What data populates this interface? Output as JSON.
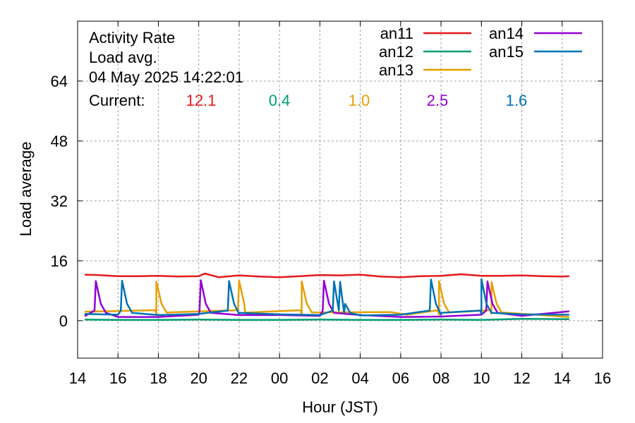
{
  "chart_data": {
    "type": "line",
    "title": "Activity Rate",
    "subtitle": "Load avg.",
    "timestamp": "04 May 2025 14:22:01",
    "current_label": "Current:",
    "xlabel": "Hour (JST)",
    "ylabel": "Load average",
    "xlim": [
      14,
      40
    ],
    "ylim": [
      -10,
      80
    ],
    "x_ticks": [
      14,
      16,
      18,
      20,
      22,
      24,
      26,
      28,
      30,
      32,
      34,
      36,
      38,
      40
    ],
    "x_tick_labels": [
      "14",
      "16",
      "18",
      "20",
      "22",
      "00",
      "02",
      "04",
      "06",
      "08",
      "10",
      "12",
      "14",
      "16"
    ],
    "y_ticks": [
      0,
      16,
      32,
      48,
      64
    ],
    "y_tick_labels": [
      "0",
      "16",
      "32",
      "48",
      "64"
    ],
    "grid": true,
    "legend_position": "top-right",
    "series": [
      {
        "name": "an11",
        "color": "#e41a1c",
        "current": "12.1",
        "base": 12.0,
        "x": [
          14.35,
          15,
          16,
          17,
          18,
          19,
          20,
          20.3,
          21,
          22,
          23,
          24,
          25,
          26,
          27,
          28,
          29,
          30,
          31,
          32,
          33,
          34,
          35,
          36,
          37,
          38,
          38.35
        ],
        "values": [
          12.3,
          12.2,
          11.9,
          11.9,
          12.0,
          11.8,
          11.9,
          12.6,
          11.6,
          12.1,
          11.8,
          11.6,
          11.9,
          12.2,
          12.1,
          12.3,
          11.8,
          11.6,
          11.9,
          12.0,
          12.4,
          12.0,
          12.0,
          12.1,
          11.9,
          11.8,
          11.9
        ]
      },
      {
        "name": "an12",
        "color": "#009e73",
        "current": "0.4",
        "base": 0.4,
        "x": [
          14.35,
          16,
          18,
          20,
          22,
          24,
          26,
          28,
          30,
          32,
          34,
          36,
          38.35
        ],
        "values": [
          0.3,
          0.2,
          0.2,
          0.3,
          0.2,
          0.2,
          0.3,
          0.2,
          0.2,
          0.3,
          0.2,
          0.5,
          0.4
        ]
      },
      {
        "name": "an13",
        "color": "#e69f00",
        "current": "1.0",
        "base": 1.6,
        "x": [
          14.35,
          17.9,
          22.3,
          25.1,
          29.5,
          30.3,
          31.9,
          34.5,
          38.35
        ],
        "values": [
          2.4,
          1.8,
          2.2,
          1.5,
          2.3,
          1.6,
          1.6,
          1.9,
          1.0
        ],
        "spikes": [
          {
            "x": 17.9,
            "value": 10.4
          },
          {
            "x": 22.0,
            "value": 10.7
          },
          {
            "x": 25.1,
            "value": 10.5
          },
          {
            "x": 31.9,
            "value": 10.6
          },
          {
            "x": 34.5,
            "value": 10.3
          }
        ]
      },
      {
        "name": "an14",
        "color": "#9400d3",
        "current": "2.5",
        "base": 1.5,
        "x": [
          14.35,
          16,
          18,
          20,
          22,
          24,
          26,
          28,
          30,
          32,
          34,
          36,
          38.35
        ],
        "values": [
          1.2,
          1.0,
          1.0,
          1.6,
          1.5,
          1.5,
          1.3,
          1.5,
          1.0,
          1.1,
          1.6,
          1.3,
          2.5
        ],
        "spikes": [
          {
            "x": 14.9,
            "value": 10.6
          },
          {
            "x": 20.1,
            "value": 10.8
          },
          {
            "x": 26.2,
            "value": 10.7
          },
          {
            "x": 34.3,
            "value": 10.5
          }
        ]
      },
      {
        "name": "an15",
        "color": "#0072b2",
        "current": "1.6",
        "base": 1.5,
        "x": [
          14.35,
          16,
          18,
          20,
          22,
          24,
          26,
          28,
          30,
          32,
          34,
          36,
          38.35
        ],
        "values": [
          1.8,
          1.6,
          1.5,
          1.8,
          1.8,
          1.7,
          1.5,
          1.4,
          1.6,
          1.6,
          1.8,
          1.7,
          1.6
        ],
        "spikes": [
          {
            "x": 16.2,
            "value": 10.7
          },
          {
            "x": 21.5,
            "value": 10.6
          },
          {
            "x": 26.7,
            "value": 10.5
          },
          {
            "x": 27.0,
            "value": 10.4
          },
          {
            "x": 31.5,
            "value": 11.0
          },
          {
            "x": 34.0,
            "value": 11.1
          }
        ]
      }
    ]
  }
}
